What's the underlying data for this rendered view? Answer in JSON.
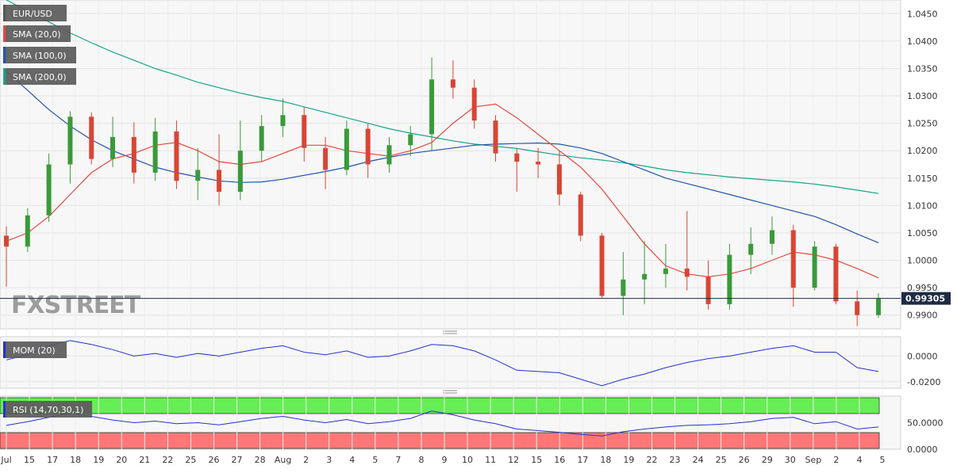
{
  "chart_data": [
    {
      "type": "candlestick",
      "title": "EUR/USD",
      "legend": [
        {
          "label": "EUR/USD",
          "color": "#555555"
        },
        {
          "label": "SMA (20,0)",
          "color": "#e8473f"
        },
        {
          "label": "SMA (100,0)",
          "color": "#2255aa"
        },
        {
          "label": "SMA (200,0)",
          "color": "#16a58f"
        }
      ],
      "watermark": "FXSTREET",
      "last_price_label": "0.99305",
      "last_price": 0.99305,
      "ylim": [
        0.9875,
        1.0475
      ],
      "y_ticks": [
        "1.0450",
        "1.0400",
        "1.0350",
        "1.0300",
        "1.0250",
        "1.0200",
        "1.0150",
        "1.0100",
        "1.0050",
        "1.0000",
        "0.9950",
        "0.9900"
      ],
      "x_ticks": [
        "Jul",
        "15",
        "17",
        "18",
        "19",
        "20",
        "21",
        "22",
        "25",
        "26",
        "27",
        "28",
        "Aug",
        "2",
        "3",
        "4",
        "5",
        "7",
        "8",
        "9",
        "10",
        "11",
        "12",
        "15",
        "16",
        "17",
        "18",
        "19",
        "22",
        "23",
        "24",
        "25",
        "26",
        "29",
        "30",
        "Sep",
        "2",
        "4",
        "5"
      ],
      "up_color": "#3a9a3a",
      "down_color": "#d94535",
      "candle_sessions": [
        {
          "open": 1.0045,
          "high": 1.0062,
          "low": 0.9952,
          "close": 1.0025
        },
        {
          "open": 1.0025,
          "high": 1.0095,
          "low": 1.0015,
          "close": 1.0082
        },
        {
          "open": 1.0082,
          "high": 1.0195,
          "low": 1.007,
          "close": 1.0175
        },
        {
          "open": 1.0175,
          "high": 1.0272,
          "low": 1.014,
          "close": 1.0262
        },
        {
          "open": 1.0262,
          "high": 1.027,
          "low": 1.0175,
          "close": 1.0185
        },
        {
          "open": 1.0185,
          "high": 1.0262,
          "low": 1.017,
          "close": 1.0225
        },
        {
          "open": 1.0225,
          "high": 1.0252,
          "low": 1.014,
          "close": 1.016
        },
        {
          "open": 1.016,
          "high": 1.026,
          "low": 1.0145,
          "close": 1.0235
        },
        {
          "open": 1.0235,
          "high": 1.0255,
          "low": 1.013,
          "close": 1.0145
        },
        {
          "open": 1.0145,
          "high": 1.0205,
          "low": 1.011,
          "close": 1.0165
        },
        {
          "open": 1.0165,
          "high": 1.023,
          "low": 1.01,
          "close": 1.0125
        },
        {
          "open": 1.0125,
          "high": 1.0255,
          "low": 1.011,
          "close": 1.02
        },
        {
          "open": 1.02,
          "high": 1.0265,
          "low": 1.018,
          "close": 1.0245
        },
        {
          "open": 1.0245,
          "high": 1.0295,
          "low": 1.0225,
          "close": 1.0265
        },
        {
          "open": 1.0265,
          "high": 1.028,
          "low": 1.018,
          "close": 1.0205
        },
        {
          "open": 1.0205,
          "high": 1.0225,
          "low": 1.013,
          "close": 1.0165
        },
        {
          "open": 1.0165,
          "high": 1.0255,
          "low": 1.0155,
          "close": 1.024
        },
        {
          "open": 1.024,
          "high": 1.025,
          "low": 1.015,
          "close": 1.0175
        },
        {
          "open": 1.0175,
          "high": 1.0225,
          "low": 1.016,
          "close": 1.021
        },
        {
          "open": 1.021,
          "high": 1.0245,
          "low": 1.019,
          "close": 1.023
        },
        {
          "open": 1.023,
          "high": 1.037,
          "low": 1.02,
          "close": 1.033
        },
        {
          "open": 1.033,
          "high": 1.0365,
          "low": 1.0295,
          "close": 1.0315
        },
        {
          "open": 1.0315,
          "high": 1.033,
          "low": 1.024,
          "close": 1.0255
        },
        {
          "open": 1.0255,
          "high": 1.0265,
          "low": 1.018,
          "close": 1.0195
        },
        {
          "open": 1.0195,
          "high": 1.0205,
          "low": 1.0125,
          "close": 1.018
        },
        {
          "open": 1.018,
          "high": 1.0205,
          "low": 1.015,
          "close": 1.0175
        },
        {
          "open": 1.0175,
          "high": 1.02,
          "low": 1.01,
          "close": 1.012
        },
        {
          "open": 1.012,
          "high": 1.0125,
          "low": 1.0035,
          "close": 1.0045
        },
        {
          "open": 1.0045,
          "high": 1.005,
          "low": 0.993,
          "close": 0.9935
        },
        {
          "open": 0.9935,
          "high": 1.0015,
          "low": 0.99,
          "close": 0.9965
        },
        {
          "open": 0.9965,
          "high": 1.0035,
          "low": 0.992,
          "close": 0.9975
        },
        {
          "open": 0.9975,
          "high": 1.003,
          "low": 0.995,
          "close": 0.9985
        },
        {
          "open": 0.9985,
          "high": 1.009,
          "low": 0.9945,
          "close": 0.997
        },
        {
          "open": 0.997,
          "high": 1.0,
          "low": 0.991,
          "close": 0.992
        },
        {
          "open": 0.992,
          "high": 1.003,
          "low": 0.991,
          "close": 1.001
        },
        {
          "open": 1.001,
          "high": 1.006,
          "low": 0.9975,
          "close": 1.003
        },
        {
          "open": 1.003,
          "high": 1.008,
          "low": 1.001,
          "close": 1.0055
        },
        {
          "open": 1.0055,
          "high": 1.0065,
          "low": 0.9915,
          "close": 0.995
        },
        {
          "open": 0.995,
          "high": 1.0035,
          "low": 0.9945,
          "close": 1.0025
        },
        {
          "open": 1.0025,
          "high": 1.003,
          "low": 0.992,
          "close": 0.9925
        },
        {
          "open": 0.9925,
          "high": 0.9945,
          "low": 0.988,
          "close": 0.99
        },
        {
          "open": 0.99,
          "high": 0.994,
          "low": 0.9895,
          "close": 0.993
        }
      ],
      "sma_20": [
        1.0035,
        1.005,
        1.008,
        1.012,
        1.016,
        1.0185,
        1.0195,
        1.021,
        1.0215,
        1.02,
        1.018,
        1.0175,
        1.018,
        1.0195,
        1.021,
        1.021,
        1.02,
        1.0195,
        1.019,
        1.02,
        1.0215,
        1.025,
        1.028,
        1.0285,
        1.026,
        1.023,
        1.02,
        1.017,
        1.013,
        1.008,
        1.003,
        0.999,
        0.9975,
        0.997,
        0.9975,
        0.9985,
        1.0,
        1.0015,
        1.001,
        1.0,
        0.9985,
        0.9968
      ],
      "sma_100": [
        1.0345,
        1.031,
        1.0275,
        1.0245,
        1.022,
        1.02,
        1.0185,
        1.017,
        1.016,
        1.0152,
        1.0145,
        1.0142,
        1.0143,
        1.0148,
        1.0155,
        1.0162,
        1.017,
        1.018,
        1.0188,
        1.0195,
        1.02,
        1.0205,
        1.021,
        1.0212,
        1.0213,
        1.0214,
        1.0212,
        1.0205,
        1.0195,
        1.018,
        1.0165,
        1.015,
        1.014,
        1.013,
        1.012,
        1.011,
        1.01,
        1.009,
        1.008,
        1.0065,
        1.0048,
        1.0032
      ],
      "sma_200": [
        1.0475,
        1.0455,
        1.0435,
        1.0415,
        1.0397,
        1.038,
        1.0365,
        1.035,
        1.0338,
        1.0325,
        1.0315,
        1.0305,
        1.0297,
        1.029,
        1.028,
        1.027,
        1.026,
        1.025,
        1.024,
        1.0232,
        1.0225,
        1.0218,
        1.0212,
        1.0208,
        1.0204,
        1.0198,
        1.0192,
        1.0187,
        1.0183,
        1.0178,
        1.0172,
        1.0165,
        1.016,
        1.0156,
        1.0152,
        1.0149,
        1.0146,
        1.0143,
        1.0139,
        1.0134,
        1.0128,
        1.0122
      ]
    },
    {
      "type": "line",
      "title": "MOM (20)",
      "color": "#2233cc",
      "ylim": [
        -0.025,
        0.015
      ],
      "y_ticks": [
        "0.0000",
        "-0.0200"
      ],
      "values": [
        -0.003,
        0.001,
        0.008,
        0.012,
        0.009,
        0.005,
        0.0,
        0.002,
        -0.001,
        0.002,
        0.0,
        0.003,
        0.006,
        0.008,
        0.003,
        0.001,
        0.004,
        -0.001,
        0.0,
        0.004,
        0.009,
        0.008,
        0.004,
        -0.003,
        -0.011,
        -0.012,
        -0.013,
        -0.018,
        -0.023,
        -0.018,
        -0.014,
        -0.009,
        -0.005,
        -0.002,
        0.0,
        0.003,
        0.006,
        0.008,
        0.003,
        0.003,
        -0.009,
        -0.012
      ]
    },
    {
      "type": "line",
      "title": "RSI (14,70,30,1)",
      "color": "#2233cc",
      "ylim": [
        0,
        100
      ],
      "y_ticks": [
        "50.0000",
        "0.0000"
      ],
      "overbought_color": "#66ee55",
      "oversold_color": "#ff7777",
      "levels": [
        70,
        30
      ],
      "values": [
        45,
        52,
        60,
        68,
        62,
        55,
        50,
        53,
        48,
        50,
        46,
        52,
        58,
        62,
        55,
        50,
        56,
        48,
        52,
        58,
        72,
        65,
        55,
        48,
        38,
        35,
        32,
        28,
        25,
        33,
        38,
        42,
        45,
        46,
        48,
        52,
        58,
        60,
        48,
        52,
        38,
        42
      ]
    }
  ]
}
